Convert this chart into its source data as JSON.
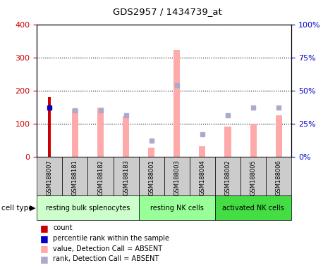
{
  "title": "GDS2957 / 1434739_at",
  "samples": [
    "GSM188007",
    "GSM188181",
    "GSM188182",
    "GSM188183",
    "GSM188001",
    "GSM188003",
    "GSM188004",
    "GSM188002",
    "GSM188005",
    "GSM188006"
  ],
  "cell_types": [
    {
      "label": "resting bulk splenocytes",
      "start": 0,
      "end": 4,
      "color": "#ccffcc"
    },
    {
      "label": "resting NK cells",
      "start": 4,
      "end": 7,
      "color": "#99ff99"
    },
    {
      "label": "activated NK cells",
      "start": 7,
      "end": 10,
      "color": "#44dd44"
    }
  ],
  "count_values": [
    180,
    0,
    0,
    0,
    0,
    0,
    0,
    0,
    0,
    0
  ],
  "percentile_values_pct": [
    37,
    0,
    0,
    0,
    0,
    0,
    0,
    0,
    0,
    0
  ],
  "absent_value_bars": [
    0,
    145,
    148,
    122,
    28,
    323,
    32,
    90,
    100,
    125
  ],
  "absent_rank_pct": [
    0,
    35,
    35,
    31,
    12,
    54,
    17,
    31,
    37,
    37
  ],
  "ylim": [
    0,
    400
  ],
  "y2lim": [
    0,
    100
  ],
  "yticks": [
    0,
    100,
    200,
    300,
    400
  ],
  "ytick_labels": [
    "0",
    "100",
    "200",
    "300",
    "400"
  ],
  "y2ticks": [
    0,
    25,
    50,
    75,
    100
  ],
  "y2tick_labels": [
    "0%",
    "25%",
    "50%",
    "75%",
    "100%"
  ],
  "count_color": "#cc0000",
  "percentile_color": "#0000cc",
  "absent_value_color": "#ffaaaa",
  "absent_rank_color": "#aaaacc",
  "ylabel_color": "#cc0000",
  "y2label_color": "#0000cc",
  "bar_width": 0.25
}
